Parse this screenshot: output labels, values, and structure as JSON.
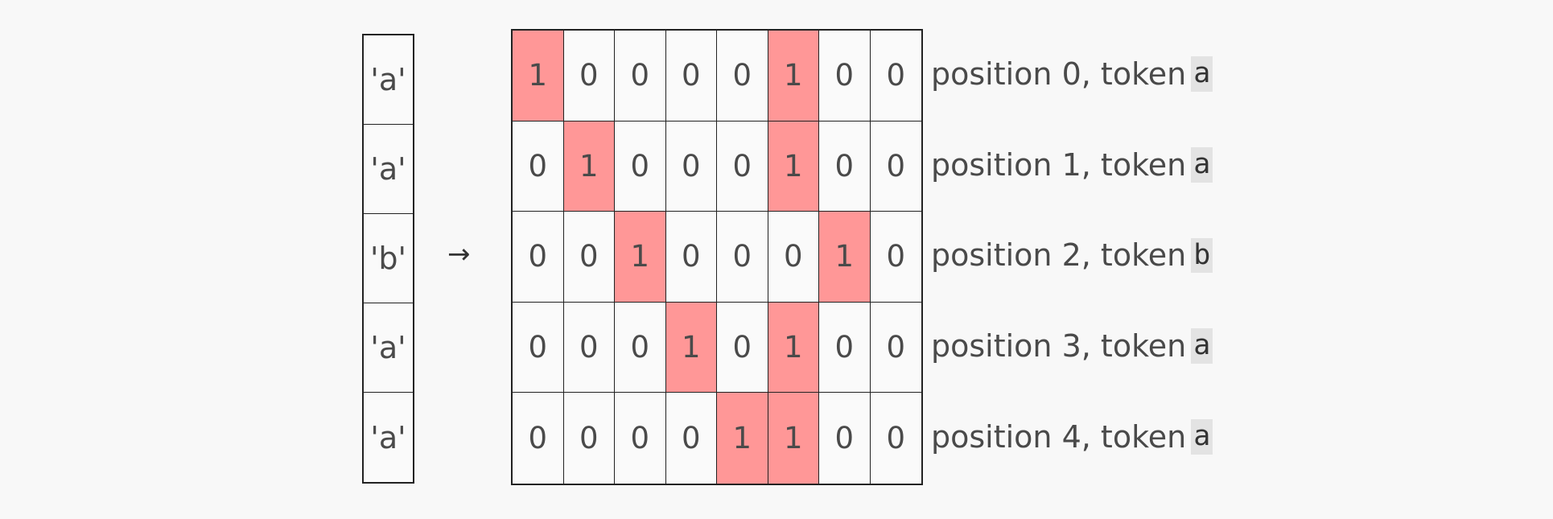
{
  "tokens": [
    "'a'",
    "'a'",
    "'b'",
    "'a'",
    "'a'"
  ],
  "arrow": "→",
  "matrix": [
    [
      "1",
      "0",
      "0",
      "0",
      "0",
      "1",
      "0",
      "0"
    ],
    [
      "0",
      "1",
      "0",
      "0",
      "0",
      "1",
      "0",
      "0"
    ],
    [
      "0",
      "0",
      "1",
      "0",
      "0",
      "0",
      "1",
      "0"
    ],
    [
      "0",
      "0",
      "0",
      "1",
      "0",
      "1",
      "0",
      "0"
    ],
    [
      "0",
      "0",
      "0",
      "0",
      "1",
      "1",
      "0",
      "0"
    ]
  ],
  "row_labels": [
    {
      "prefix": "position 0, token",
      "token": "a"
    },
    {
      "prefix": "position 1, token",
      "token": "a"
    },
    {
      "prefix": "position 2, token",
      "token": "b"
    },
    {
      "prefix": "position 3, token",
      "token": "a"
    },
    {
      "prefix": "position 4, token",
      "token": "a"
    }
  ],
  "colors": {
    "highlight": "#ff9797",
    "background": "#f8f8f8",
    "token_highlight": "#e3e3e3"
  }
}
